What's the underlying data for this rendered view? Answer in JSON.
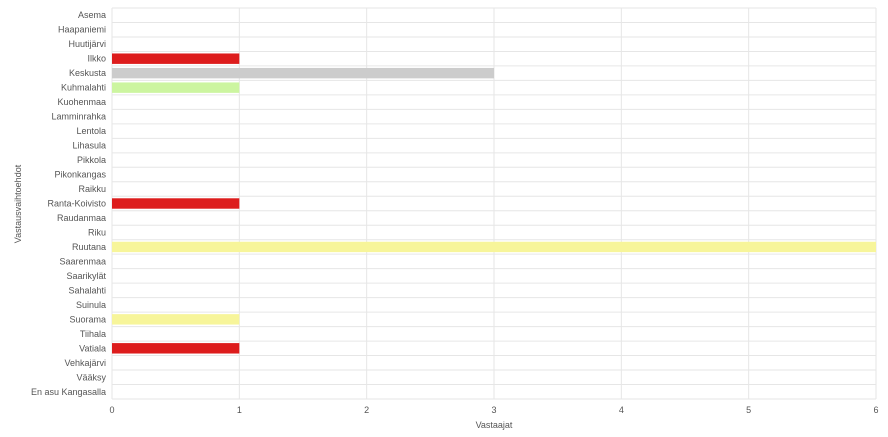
{
  "chart_data": {
    "type": "bar",
    "orientation": "horizontal",
    "title": "",
    "xlabel": "Vastaajat",
    "ylabel": "Vastausvaihtoehdot",
    "xlim": [
      0,
      6
    ],
    "x_ticks": [
      0,
      1,
      2,
      3,
      4,
      5,
      6
    ],
    "grid": true,
    "legend": "none",
    "categories": [
      "Asema",
      "Haapaniemi",
      "Huutijärvi",
      "Ilkko",
      "Keskusta",
      "Kuhmalahti",
      "Kuohenmaa",
      "Lamminrahka",
      "Lentola",
      "Lihasula",
      "Pikkola",
      "Pikonkangas",
      "Raikku",
      "Ranta-Koivisto",
      "Raudanmaa",
      "Riku",
      "Ruutana",
      "Saarenmaa",
      "Saarikylät",
      "Sahalahti",
      "Suinula",
      "Suorama",
      "Tiihala",
      "Vatiala",
      "Vehkajärvi",
      "Vääksy",
      "En asu Kangasalla"
    ],
    "values": [
      0,
      0,
      0,
      1,
      3,
      1,
      0,
      0,
      0,
      0,
      0,
      0,
      0,
      1,
      0,
      0,
      6,
      0,
      0,
      0,
      0,
      1,
      0,
      1,
      0,
      0,
      0
    ],
    "bar_colors": [
      "#cccccc",
      "#cccccc",
      "#cccccc",
      "#dd1c1c",
      "#cccccc",
      "#ccf5a0",
      "#cccccc",
      "#cccccc",
      "#cccccc",
      "#cccccc",
      "#cccccc",
      "#cccccc",
      "#cccccc",
      "#dd1c1c",
      "#cccccc",
      "#cccccc",
      "#f7f59a",
      "#cccccc",
      "#cccccc",
      "#cccccc",
      "#cccccc",
      "#f7f59a",
      "#cccccc",
      "#dd1c1c",
      "#cccccc",
      "#cccccc",
      "#cccccc"
    ]
  },
  "colors": {
    "grid": "#e6e6e6",
    "axis_text": "#555555"
  }
}
